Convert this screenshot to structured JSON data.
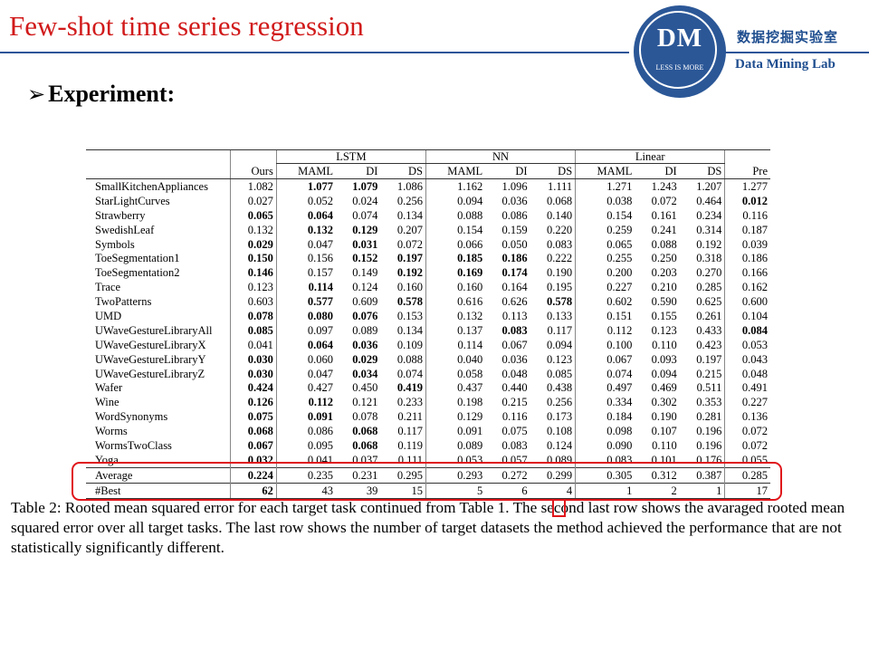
{
  "slide": {
    "title": "Few-shot time series regression",
    "bullet": "Experiment:",
    "bullet_arrow": "➢",
    "logo": {
      "initials": "DM",
      "motto": "LESS IS MORE",
      "lab_cn": "数据挖掘实验室",
      "lab_en": "Data Mining Lab"
    },
    "colors": {
      "title": "#d11a1a",
      "rule": "#2f5597",
      "logo": "#2b5797",
      "highlight": "#e0161b"
    }
  },
  "table": {
    "groups": [
      "LSTM",
      "NN",
      "Linear"
    ],
    "columns": [
      "Ours",
      "MAML",
      "DI",
      "DS",
      "MAML",
      "DI",
      "DS",
      "MAML",
      "DI",
      "DS",
      "Pre"
    ],
    "rows": [
      {
        "name": "SmallKitchenAppliances",
        "values": [
          "1.082",
          "1.077",
          "1.079",
          "1.086",
          "1.162",
          "1.096",
          "1.111",
          "1.271",
          "1.243",
          "1.207",
          "1.277"
        ],
        "bold": [
          1,
          2
        ]
      },
      {
        "name": "StarLightCurves",
        "values": [
          "0.027",
          "0.052",
          "0.024",
          "0.256",
          "0.094",
          "0.036",
          "0.068",
          "0.038",
          "0.072",
          "0.464",
          "0.012"
        ],
        "bold": [
          10
        ]
      },
      {
        "name": "Strawberry",
        "values": [
          "0.065",
          "0.064",
          "0.074",
          "0.134",
          "0.088",
          "0.086",
          "0.140",
          "0.154",
          "0.161",
          "0.234",
          "0.116"
        ],
        "bold": [
          0,
          1
        ]
      },
      {
        "name": "SwedishLeaf",
        "values": [
          "0.132",
          "0.132",
          "0.129",
          "0.207",
          "0.154",
          "0.159",
          "0.220",
          "0.259",
          "0.241",
          "0.314",
          "0.187"
        ],
        "bold": [
          1,
          2
        ]
      },
      {
        "name": "Symbols",
        "values": [
          "0.029",
          "0.047",
          "0.031",
          "0.072",
          "0.066",
          "0.050",
          "0.083",
          "0.065",
          "0.088",
          "0.192",
          "0.039"
        ],
        "bold": [
          0,
          2
        ]
      },
      {
        "name": "ToeSegmentation1",
        "values": [
          "0.150",
          "0.156",
          "0.152",
          "0.197",
          "0.185",
          "0.186",
          "0.222",
          "0.255",
          "0.250",
          "0.318",
          "0.186"
        ],
        "bold": [
          0,
          2,
          3,
          4,
          5
        ]
      },
      {
        "name": "ToeSegmentation2",
        "values": [
          "0.146",
          "0.157",
          "0.149",
          "0.192",
          "0.169",
          "0.174",
          "0.190",
          "0.200",
          "0.203",
          "0.270",
          "0.166"
        ],
        "bold": [
          0,
          3,
          4,
          5
        ]
      },
      {
        "name": "Trace",
        "values": [
          "0.123",
          "0.114",
          "0.124",
          "0.160",
          "0.160",
          "0.164",
          "0.195",
          "0.227",
          "0.210",
          "0.285",
          "0.162"
        ],
        "bold": [
          1
        ]
      },
      {
        "name": "TwoPatterns",
        "values": [
          "0.603",
          "0.577",
          "0.609",
          "0.578",
          "0.616",
          "0.626",
          "0.578",
          "0.602",
          "0.590",
          "0.625",
          "0.600"
        ],
        "bold": [
          1,
          3,
          6
        ]
      },
      {
        "name": "UMD",
        "values": [
          "0.078",
          "0.080",
          "0.076",
          "0.153",
          "0.132",
          "0.113",
          "0.133",
          "0.151",
          "0.155",
          "0.261",
          "0.104"
        ],
        "bold": [
          0,
          1,
          2
        ]
      },
      {
        "name": "UWaveGestureLibraryAll",
        "values": [
          "0.085",
          "0.097",
          "0.089",
          "0.134",
          "0.137",
          "0.083",
          "0.117",
          "0.112",
          "0.123",
          "0.433",
          "0.084"
        ],
        "bold": [
          0,
          5,
          10
        ]
      },
      {
        "name": "UWaveGestureLibraryX",
        "values": [
          "0.041",
          "0.064",
          "0.036",
          "0.109",
          "0.114",
          "0.067",
          "0.094",
          "0.100",
          "0.110",
          "0.423",
          "0.053"
        ],
        "bold": [
          1,
          2
        ]
      },
      {
        "name": "UWaveGestureLibraryY",
        "values": [
          "0.030",
          "0.060",
          "0.029",
          "0.088",
          "0.040",
          "0.036",
          "0.123",
          "0.067",
          "0.093",
          "0.197",
          "0.043"
        ],
        "bold": [
          0,
          2
        ]
      },
      {
        "name": "UWaveGestureLibraryZ",
        "values": [
          "0.030",
          "0.047",
          "0.034",
          "0.074",
          "0.058",
          "0.048",
          "0.085",
          "0.074",
          "0.094",
          "0.215",
          "0.048"
        ],
        "bold": [
          0,
          2
        ]
      },
      {
        "name": "Wafer",
        "values": [
          "0.424",
          "0.427",
          "0.450",
          "0.419",
          "0.437",
          "0.440",
          "0.438",
          "0.497",
          "0.469",
          "0.511",
          "0.491"
        ],
        "bold": [
          0,
          3
        ]
      },
      {
        "name": "Wine",
        "values": [
          "0.126",
          "0.112",
          "0.121",
          "0.233",
          "0.198",
          "0.215",
          "0.256",
          "0.334",
          "0.302",
          "0.353",
          "0.227"
        ],
        "bold": [
          0,
          1
        ]
      },
      {
        "name": "WordSynonyms",
        "values": [
          "0.075",
          "0.091",
          "0.078",
          "0.211",
          "0.129",
          "0.116",
          "0.173",
          "0.184",
          "0.190",
          "0.281",
          "0.136"
        ],
        "bold": [
          0,
          1
        ]
      },
      {
        "name": "Worms",
        "values": [
          "0.068",
          "0.086",
          "0.068",
          "0.117",
          "0.091",
          "0.075",
          "0.108",
          "0.098",
          "0.107",
          "0.196",
          "0.072"
        ],
        "bold": [
          0,
          2
        ]
      },
      {
        "name": "WormsTwoClass",
        "values": [
          "0.067",
          "0.095",
          "0.068",
          "0.119",
          "0.089",
          "0.083",
          "0.124",
          "0.090",
          "0.110",
          "0.196",
          "0.072"
        ],
        "bold": [
          0,
          2
        ]
      },
      {
        "name": "Yoga",
        "values": [
          "0.032",
          "0.041",
          "0.037",
          "0.111",
          "0.053",
          "0.057",
          "0.089",
          "0.083",
          "0.101",
          "0.176",
          "0.055"
        ],
        "bold": [
          0
        ]
      }
    ],
    "average": {
      "name": "Average",
      "values": [
        "0.224",
        "0.235",
        "0.231",
        "0.295",
        "0.293",
        "0.272",
        "0.299",
        "0.305",
        "0.312",
        "0.387",
        "0.285"
      ],
      "bold": [
        0
      ]
    },
    "best": {
      "name": "#Best",
      "values": [
        "62",
        "43",
        "39",
        "15",
        "5",
        "6",
        "4",
        "1",
        "2",
        "1",
        "17"
      ],
      "bold": [
        0
      ]
    }
  },
  "caption": {
    "text": "Table 2: Rooted mean squared error for each target task continued from Table 1. The second last row shows the avaraged rooted mean squared error over all target tasks. The last row shows the number of target datasets the method achieved the performance that are not statistically significantly different."
  }
}
